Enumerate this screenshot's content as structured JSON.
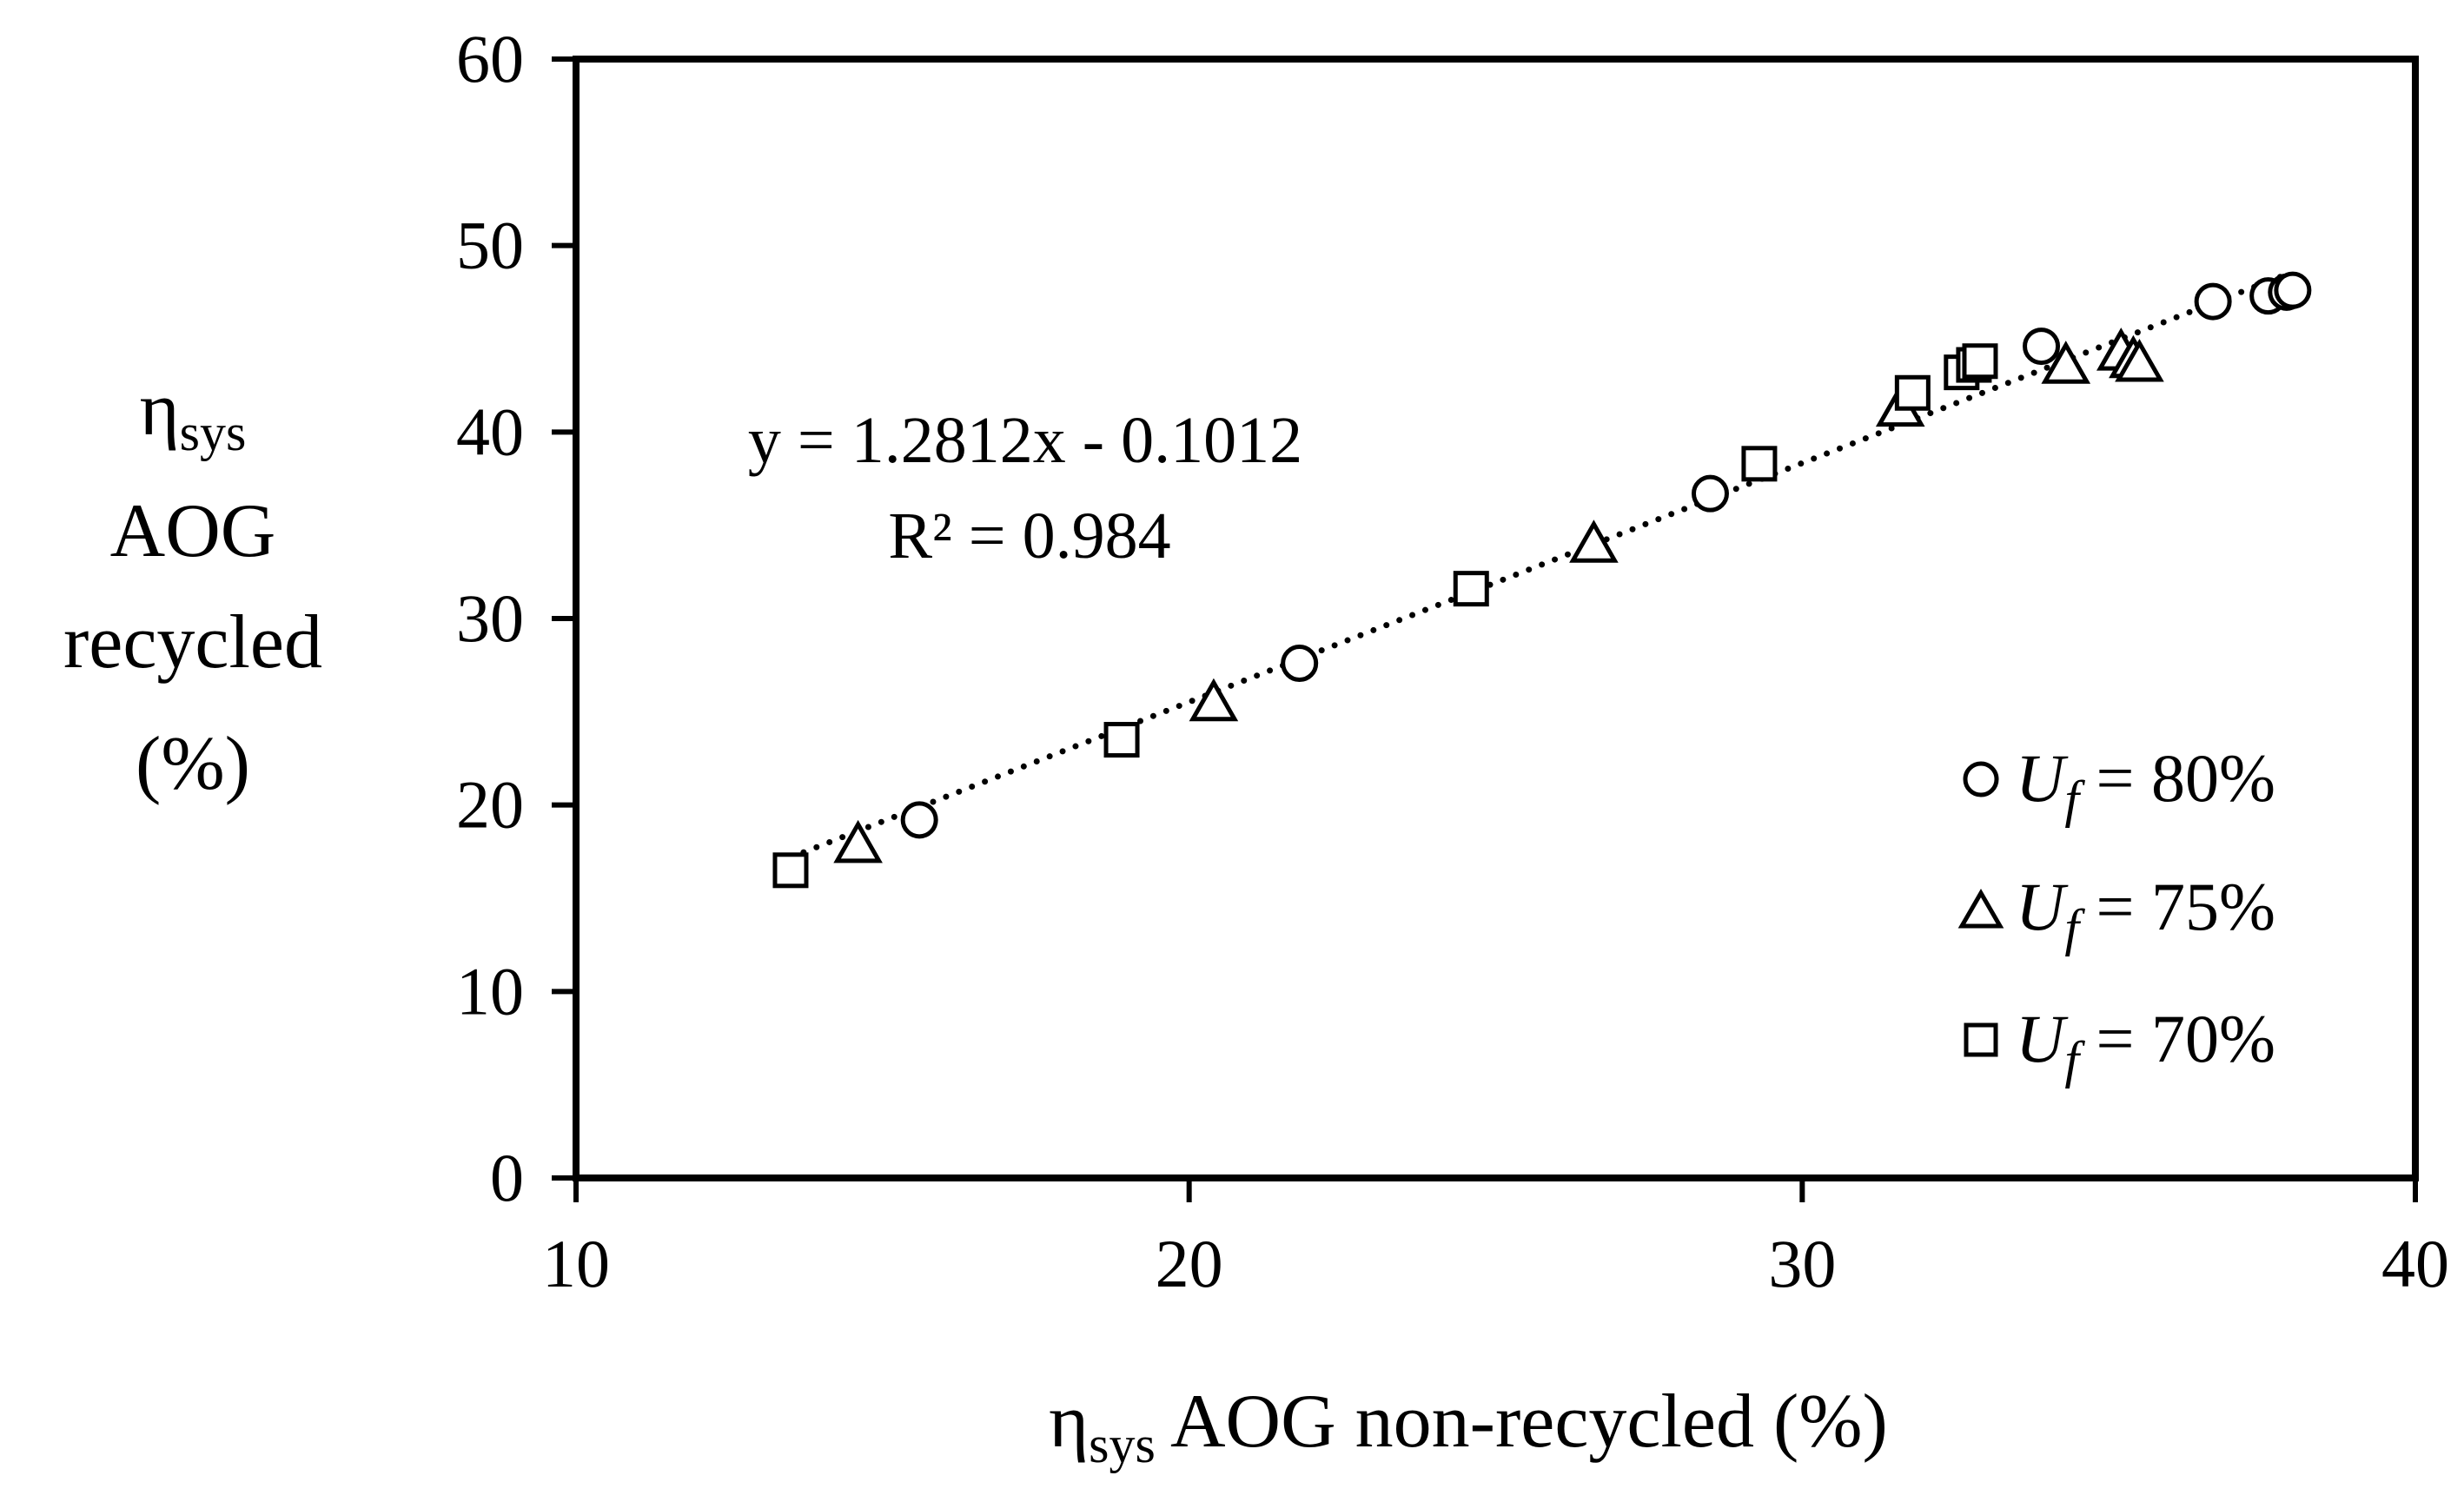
{
  "chart_data": {
    "type": "scatter",
    "xlabel": {
      "symbol": "η",
      "subscript": "sys",
      "text": " AOG non-recycled (%)"
    },
    "ylabel": {
      "symbol": "η",
      "subscript": "sys",
      "lines": [
        "AOG",
        "recycled",
        "(%)"
      ]
    },
    "xlim": [
      10,
      40
    ],
    "ylim": [
      0,
      60
    ],
    "xticks": [
      "10",
      "20",
      "30",
      "40"
    ],
    "yticks": [
      "0",
      "10",
      "20",
      "30",
      "40",
      "50",
      "60"
    ],
    "grid": false,
    "legend_position": "right",
    "series": [
      {
        "name": "Uf = 80%",
        "legend_var": "U",
        "legend_sub": "f",
        "legend_value": " = 80%",
        "marker": "circle",
        "points": [
          {
            "x": 15.6,
            "y": 19.2
          },
          {
            "x": 21.8,
            "y": 27.6
          },
          {
            "x": 28.5,
            "y": 36.7
          },
          {
            "x": 33.9,
            "y": 44.6
          },
          {
            "x": 36.7,
            "y": 47.0
          },
          {
            "x": 37.6,
            "y": 47.3
          },
          {
            "x": 37.9,
            "y": 47.5
          },
          {
            "x": 38.0,
            "y": 47.6
          }
        ]
      },
      {
        "name": "Uf = 75%",
        "legend_var": "U",
        "legend_sub": "f",
        "legend_value": " = 75%",
        "marker": "triangle",
        "points": [
          {
            "x": 14.6,
            "y": 17.8
          },
          {
            "x": 20.4,
            "y": 25.4
          },
          {
            "x": 26.6,
            "y": 33.9
          },
          {
            "x": 31.6,
            "y": 41.2
          },
          {
            "x": 34.3,
            "y": 43.5
          },
          {
            "x": 35.2,
            "y": 44.2
          },
          {
            "x": 35.4,
            "y": 43.8
          },
          {
            "x": 35.5,
            "y": 43.6
          }
        ]
      },
      {
        "name": "Uf = 70%",
        "legend_var": "U",
        "legend_sub": "f",
        "legend_value": " = 70%",
        "marker": "square",
        "points": [
          {
            "x": 13.5,
            "y": 16.5
          },
          {
            "x": 18.9,
            "y": 23.5
          },
          {
            "x": 24.6,
            "y": 31.6
          },
          {
            "x": 29.3,
            "y": 38.3
          },
          {
            "x": 31.8,
            "y": 42.1
          },
          {
            "x": 32.6,
            "y": 43.2
          },
          {
            "x": 32.8,
            "y": 43.6
          },
          {
            "x": 32.9,
            "y": 43.8
          }
        ]
      }
    ],
    "trendline": {
      "style": "dotted",
      "slope": 1.2812,
      "intercept": -0.1012,
      "x_range": [
        13.5,
        38.0
      ],
      "equation": "y = 1.2812x - 0.1012",
      "r_squared": "R² = 0.984"
    }
  }
}
